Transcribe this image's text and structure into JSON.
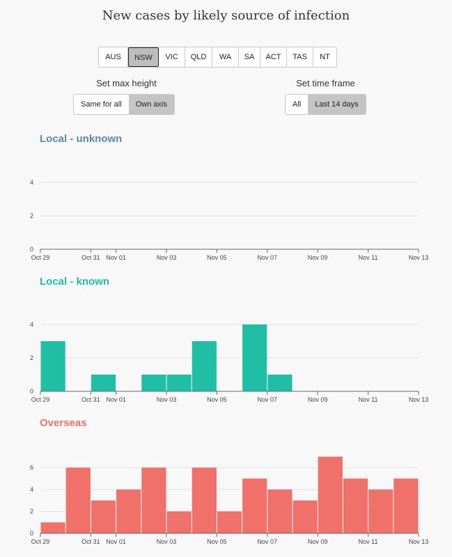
{
  "title": "New cases by likely source of infection",
  "states": {
    "items": [
      "AUS",
      "NSW",
      "VIC",
      "QLD",
      "WA",
      "SA",
      "ACT",
      "TAS",
      "NT"
    ],
    "active": "NSW"
  },
  "max_height": {
    "label": "Set max height",
    "options": [
      "Same for all",
      "Own axis"
    ],
    "active": "Own axis"
  },
  "time_frame": {
    "label": "Set time frame",
    "options": [
      "All",
      "Last 14 days"
    ],
    "active": "Last 14 days"
  },
  "chart_data": [
    {
      "type": "bar",
      "title": "Local - unknown",
      "color": "#5b87b5",
      "bar_color": "#5b87b5",
      "categories": [
        "Oct 29",
        "Oct 30",
        "Oct 31",
        "Nov 01",
        "Nov 02",
        "Nov 03",
        "Nov 04",
        "Nov 05",
        "Nov 06",
        "Nov 07",
        "Nov 08",
        "Nov 09",
        "Nov 10",
        "Nov 11",
        "Nov 12"
      ],
      "values": [
        0,
        0,
        0,
        0,
        0,
        0,
        0,
        0,
        0,
        0,
        0,
        0,
        0,
        0,
        0
      ],
      "ylim": [
        0,
        5
      ],
      "yticks": [
        0,
        2,
        4
      ],
      "xticks": [
        "Oct 29",
        "Oct 31",
        "Nov 01",
        "Nov 03",
        "Nov 05",
        "Nov 07",
        "Nov 09",
        "Nov 11",
        "Nov 13"
      ],
      "xlabel": "",
      "ylabel": ""
    },
    {
      "type": "bar",
      "title": "Local - known",
      "color": "#20bfa5",
      "bar_color": "#20bfa5",
      "categories": [
        "Oct 29",
        "Oct 30",
        "Oct 31",
        "Nov 01",
        "Nov 02",
        "Nov 03",
        "Nov 04",
        "Nov 05",
        "Nov 06",
        "Nov 07",
        "Nov 08",
        "Nov 09",
        "Nov 10",
        "Nov 11",
        "Nov 12"
      ],
      "values": [
        3,
        0,
        1,
        0,
        1,
        1,
        3,
        0,
        4,
        1,
        0,
        0,
        0,
        0,
        0
      ],
      "ylim": [
        0,
        5
      ],
      "yticks": [
        0,
        2,
        4
      ],
      "xticks": [
        "Oct 29",
        "Oct 31",
        "Nov 01",
        "Nov 03",
        "Nov 05",
        "Nov 07",
        "Nov 09",
        "Nov 11",
        "Nov 13"
      ],
      "xlabel": "",
      "ylabel": ""
    },
    {
      "type": "bar",
      "title": "Overseas",
      "color": "#f0706a",
      "bar_color": "#f0706a",
      "categories": [
        "Oct 29",
        "Oct 30",
        "Oct 31",
        "Nov 01",
        "Nov 02",
        "Nov 03",
        "Nov 04",
        "Nov 05",
        "Nov 06",
        "Nov 07",
        "Nov 08",
        "Nov 09",
        "Nov 10",
        "Nov 11",
        "Nov 12"
      ],
      "values": [
        1,
        6,
        3,
        4,
        6,
        2,
        6,
        2,
        5,
        4,
        3,
        7,
        5,
        4,
        5
      ],
      "ylim": [
        0,
        7.5
      ],
      "yticks": [
        0,
        2,
        4,
        6
      ],
      "xticks": [
        "Oct 29",
        "Oct 31",
        "Nov 01",
        "Nov 03",
        "Nov 05",
        "Nov 07",
        "Nov 09",
        "Nov 11",
        "Nov 13"
      ],
      "xlabel": "",
      "ylabel": ""
    }
  ]
}
